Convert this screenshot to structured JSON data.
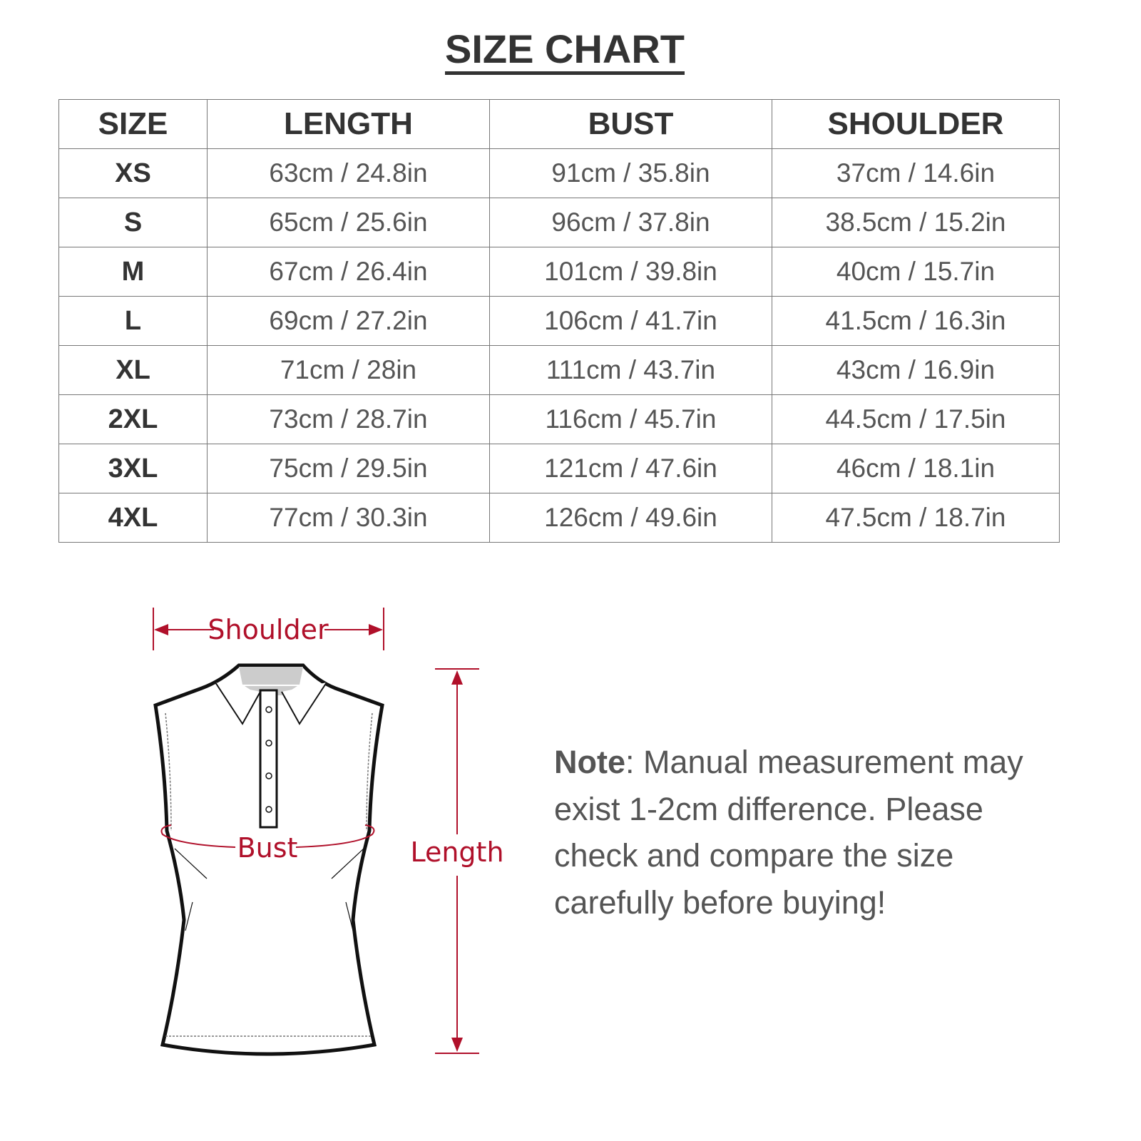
{
  "title": "SIZE CHART",
  "table": {
    "headers": [
      "SIZE",
      "LENGTH",
      "BUST",
      "SHOULDER"
    ],
    "rows": [
      [
        "XS",
        "63cm / 24.8in",
        "91cm / 35.8in",
        "37cm / 14.6in"
      ],
      [
        "S",
        "65cm / 25.6in",
        "96cm / 37.8in",
        "38.5cm / 15.2in"
      ],
      [
        "M",
        "67cm / 26.4in",
        "101cm / 39.8in",
        "40cm / 15.7in"
      ],
      [
        "L",
        "69cm / 27.2in",
        "106cm / 41.7in",
        "41.5cm / 16.3in"
      ],
      [
        "XL",
        "71cm / 28in",
        "111cm / 43.7in",
        "43cm / 16.9in"
      ],
      [
        "2XL",
        "73cm / 28.7in",
        "116cm / 45.7in",
        "44.5cm / 17.5in"
      ],
      [
        "3XL",
        "75cm / 29.5in",
        "121cm / 47.6in",
        "46cm / 18.1in"
      ],
      [
        "4XL",
        "77cm / 30.3in",
        "126cm / 49.6in",
        "47.5cm / 18.7in"
      ]
    ]
  },
  "diagram": {
    "shoulder_label": "Shoulder",
    "bust_label": "Bust",
    "length_label": "Length",
    "accent_color": "#b0102a"
  },
  "note": {
    "label": "Note",
    "text": ": Manual measurement may exist 1-2cm difference. Please check and compare the size carefully before buying!"
  }
}
